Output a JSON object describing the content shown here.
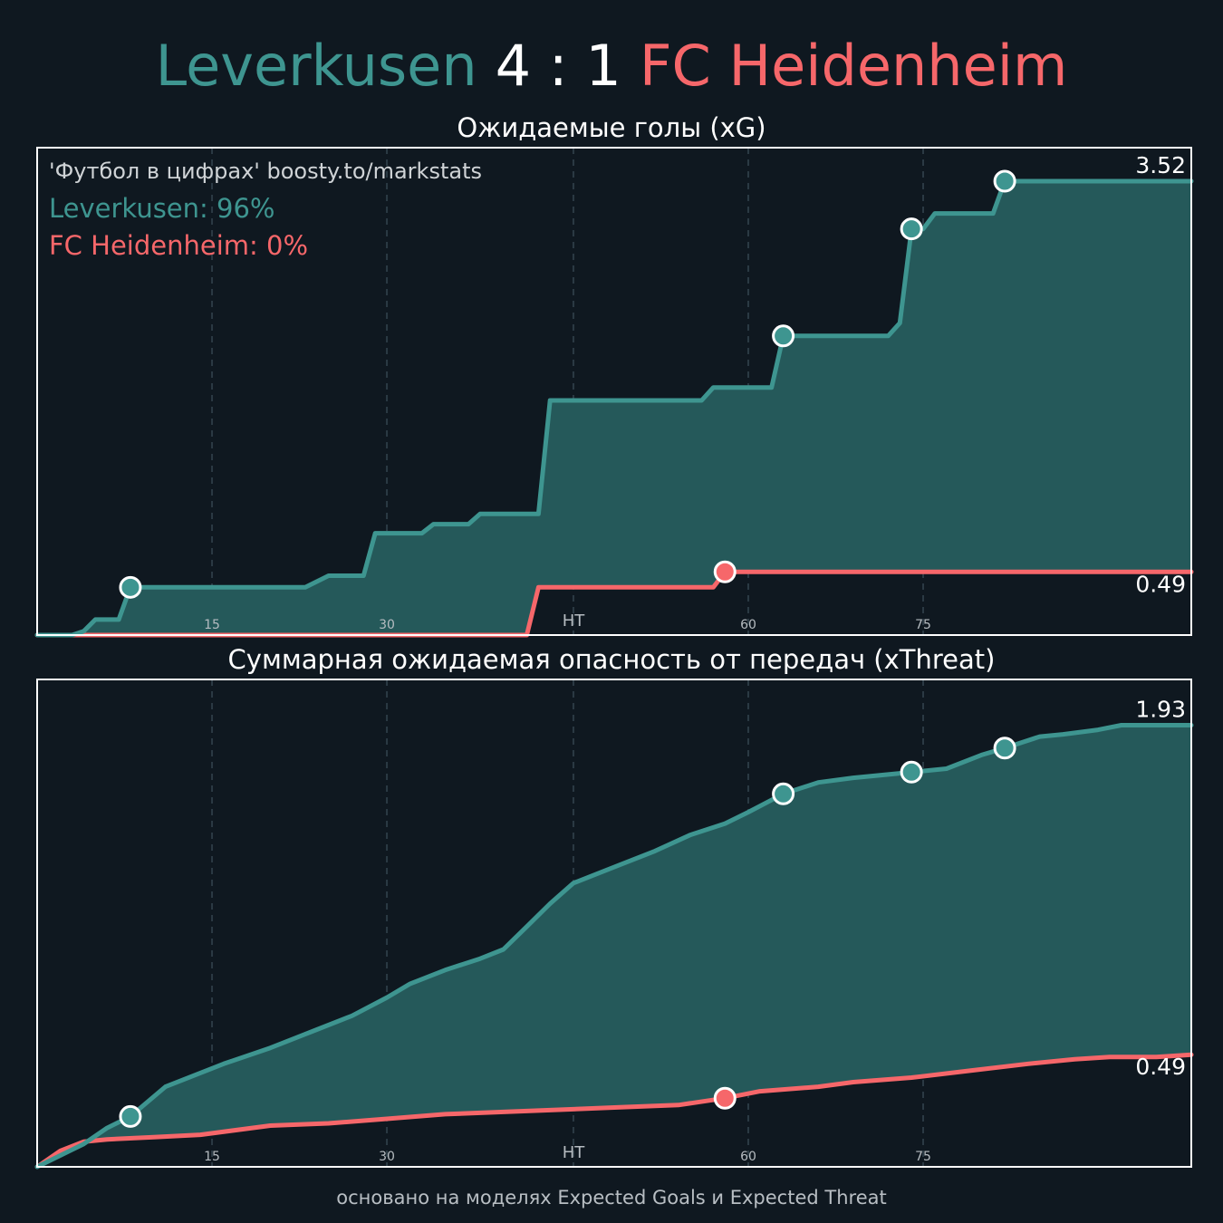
{
  "header": {
    "home_team": "Leverkusen",
    "score": "4 : 1",
    "away_team": "FC Heidenheim"
  },
  "credit": "'Футбол в цифрах' boosty.to/markstats",
  "win_probability": {
    "home": "Leverkusen: 96%",
    "away": "FC Heidenheim: 0%"
  },
  "footer": "основано на моделях Expected Goals и Expected Threat",
  "colors": {
    "home": "#3e9590",
    "away": "#f6676a",
    "background": "#0f1820",
    "fill_between": "#25595a"
  },
  "chart_data": [
    {
      "type": "line",
      "title": "Ожидаемые голы (xG)",
      "xlim": [
        0,
        99
      ],
      "ylim": [
        0,
        3.78
      ],
      "x_ticks": [
        {
          "value": 15,
          "label": "15"
        },
        {
          "value": 30,
          "label": "30"
        },
        {
          "value": 46,
          "label": "HT"
        },
        {
          "value": 61,
          "label": "60"
        },
        {
          "value": 76,
          "label": "75"
        }
      ],
      "end_labels": {
        "home": "3.52",
        "away": "0.49"
      },
      "fill_between": true,
      "step": true,
      "series": [
        {
          "name": "Leverkusen",
          "color": "#3e9590",
          "points": [
            [
              0,
              0
            ],
            [
              3,
              0
            ],
            [
              4,
              0.03
            ],
            [
              5,
              0.12
            ],
            [
              7,
              0.12
            ],
            [
              8,
              0.37
            ],
            [
              23,
              0.37
            ],
            [
              25,
              0.46
            ],
            [
              28,
              0.46
            ],
            [
              29,
              0.79
            ],
            [
              33,
              0.79
            ],
            [
              34,
              0.86
            ],
            [
              37,
              0.86
            ],
            [
              38,
              0.94
            ],
            [
              43,
              0.94
            ],
            [
              44,
              1.82
            ],
            [
              57,
              1.82
            ],
            [
              58,
              1.92
            ],
            [
              63,
              1.92
            ],
            [
              64,
              2.32
            ],
            [
              73,
              2.32
            ],
            [
              74,
              2.42
            ],
            [
              75,
              3.15
            ],
            [
              76,
              3.15
            ],
            [
              77,
              3.27
            ],
            [
              82,
              3.27
            ],
            [
              83,
              3.52
            ],
            [
              99,
              3.52
            ]
          ],
          "goals": [
            8,
            64,
            75,
            83
          ]
        },
        {
          "name": "FC Heidenheim",
          "color": "#f6676a",
          "points": [
            [
              0,
              0
            ],
            [
              42,
              0
            ],
            [
              43,
              0.37
            ],
            [
              58,
              0.37
            ],
            [
              59,
              0.49
            ],
            [
              99,
              0.49
            ]
          ],
          "goals": [
            59
          ]
        }
      ]
    },
    {
      "type": "line",
      "title": "Суммарная ожидаемая опасность от передач (xThreat)",
      "xlim": [
        0,
        99
      ],
      "ylim": [
        0,
        2.13
      ],
      "x_ticks": [
        {
          "value": 15,
          "label": "15"
        },
        {
          "value": 30,
          "label": "30"
        },
        {
          "value": 46,
          "label": "HT"
        },
        {
          "value": 61,
          "label": "60"
        },
        {
          "value": 76,
          "label": "75"
        }
      ],
      "end_labels": {
        "home": "1.93",
        "away": "0.49"
      },
      "fill_between": true,
      "step": false,
      "series": [
        {
          "name": "Leverkusen",
          "color": "#3e9590",
          "points": [
            [
              0,
              0
            ],
            [
              2,
              0.05
            ],
            [
              4,
              0.1
            ],
            [
              6,
              0.17
            ],
            [
              8,
              0.22
            ],
            [
              11,
              0.35
            ],
            [
              16,
              0.45
            ],
            [
              20,
              0.52
            ],
            [
              24,
              0.6
            ],
            [
              27,
              0.66
            ],
            [
              30,
              0.74
            ],
            [
              32,
              0.8
            ],
            [
              35,
              0.86
            ],
            [
              38,
              0.91
            ],
            [
              40,
              0.95
            ],
            [
              42,
              1.05
            ],
            [
              44,
              1.15
            ],
            [
              46,
              1.24
            ],
            [
              48,
              1.28
            ],
            [
              50,
              1.32
            ],
            [
              53,
              1.38
            ],
            [
              56,
              1.45
            ],
            [
              59,
              1.5
            ],
            [
              61,
              1.55
            ],
            [
              64,
              1.63
            ],
            [
              67,
              1.68
            ],
            [
              70,
              1.7
            ],
            [
              74,
              1.72
            ],
            [
              78,
              1.74
            ],
            [
              81,
              1.8
            ],
            [
              83,
              1.83
            ],
            [
              86,
              1.88
            ],
            [
              88,
              1.89
            ],
            [
              91,
              1.91
            ],
            [
              93,
              1.93
            ],
            [
              96,
              1.93
            ],
            [
              99,
              1.93
            ]
          ],
          "goals": [
            8,
            64,
            75,
            83
          ]
        },
        {
          "name": "FC Heidenheim",
          "color": "#f6676a",
          "points": [
            [
              0,
              0
            ],
            [
              2,
              0.07
            ],
            [
              4,
              0.11
            ],
            [
              6,
              0.12
            ],
            [
              10,
              0.13
            ],
            [
              14,
              0.14
            ],
            [
              20,
              0.18
            ],
            [
              25,
              0.19
            ],
            [
              30,
              0.21
            ],
            [
              35,
              0.23
            ],
            [
              40,
              0.24
            ],
            [
              45,
              0.25
            ],
            [
              50,
              0.26
            ],
            [
              55,
              0.27
            ],
            [
              59,
              0.3
            ],
            [
              62,
              0.33
            ],
            [
              67,
              0.35
            ],
            [
              70,
              0.37
            ],
            [
              75,
              0.39
            ],
            [
              80,
              0.42
            ],
            [
              85,
              0.45
            ],
            [
              89,
              0.47
            ],
            [
              92,
              0.48
            ],
            [
              96,
              0.48
            ],
            [
              99,
              0.49
            ]
          ],
          "goals": [
            59
          ]
        }
      ]
    }
  ]
}
